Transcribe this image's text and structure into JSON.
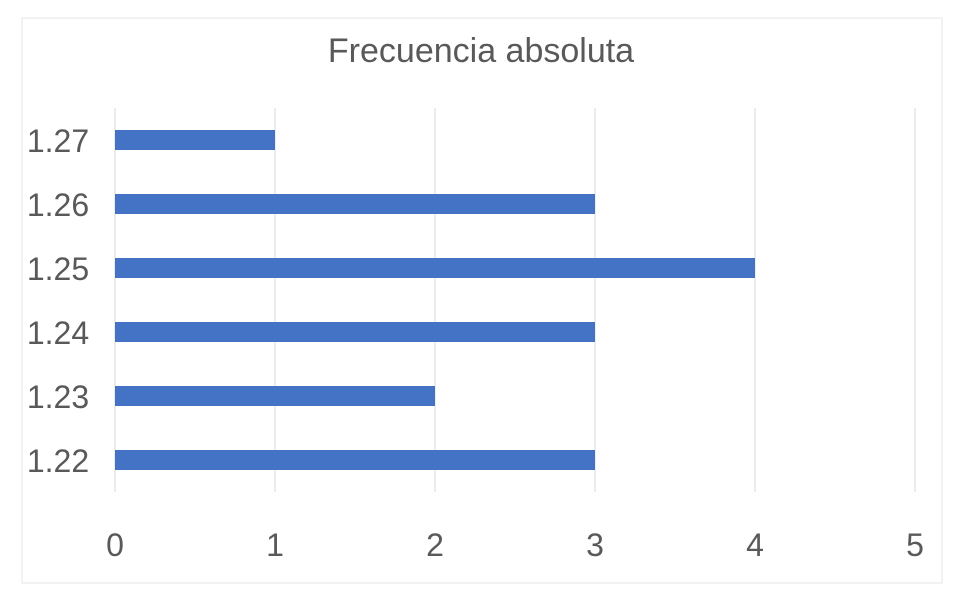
{
  "chart_data": {
    "type": "bar",
    "orientation": "horizontal",
    "title": "Frecuencia absoluta",
    "categories": [
      "1.22",
      "1.23",
      "1.24",
      "1.25",
      "1.26",
      "1.27"
    ],
    "values": [
      3,
      2,
      3,
      4,
      3,
      1
    ],
    "xlim": [
      0,
      5
    ],
    "x_ticks": [
      "0",
      "1",
      "2",
      "3",
      "4",
      "5"
    ],
    "grid": true,
    "legend": "none",
    "bar_color": "#4472C4",
    "grid_color": "#D9D9D9",
    "text_color": "#595959"
  }
}
